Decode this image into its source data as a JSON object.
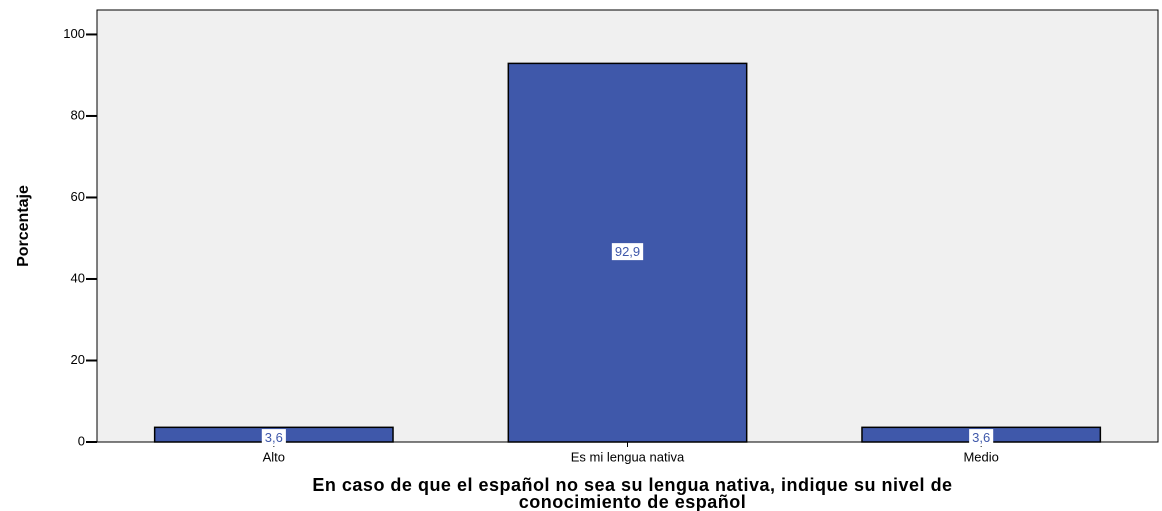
{
  "chart_data": {
    "type": "bar",
    "categories": [
      "Alto",
      "Es mi lengua nativa",
      "Medio"
    ],
    "values": [
      3.6,
      92.9,
      3.6
    ],
    "value_labels": [
      "3,6",
      "92,9",
      "3,6"
    ],
    "color": "#3f58aa",
    "ylim": [
      0,
      106
    ],
    "yticks": [
      0,
      20,
      40,
      60,
      80,
      100
    ],
    "ylabel": "Porcentaje",
    "xlabel": [
      "En caso de que el español no sea su lengua nativa, indique su nivel de",
      "conocimiento de español"
    ],
    "grid": false
  }
}
